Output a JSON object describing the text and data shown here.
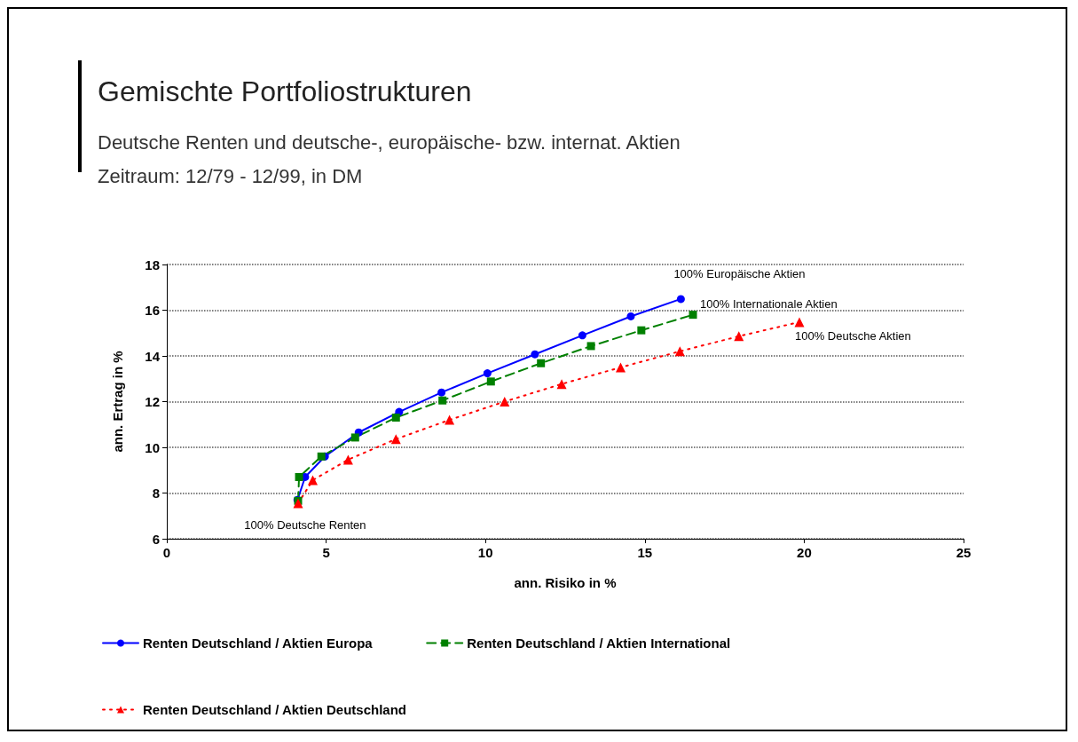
{
  "chart_data": {
    "type": "line",
    "title": "Gemischte Portfoliostrukturen",
    "subtitle": "Deutsche Renten und deutsche-, europäische- bzw. internat. Aktien\nZeitraum: 12/79 - 12/99, in DM",
    "xlabel": "ann. Risiko in %",
    "ylabel": "ann. Ertrag in %",
    "xlim": [
      0,
      25
    ],
    "xticks": [
      0,
      5,
      10,
      15,
      20,
      25
    ],
    "ylim": [
      6,
      18
    ],
    "yticks": [
      6,
      8,
      10,
      12,
      14,
      16,
      18
    ],
    "grid": "y",
    "legend": "bottom",
    "series": [
      {
        "name": "Renten Deutschland / Aktien Europa",
        "color": "#0000ff",
        "marker": "circle",
        "line_style": "solid",
        "x": [
          4.1,
          4.34,
          4.96,
          6.02,
          7.29,
          8.62,
          10.06,
          11.55,
          13.04,
          14.56,
          16.13
        ],
        "values": [
          7.7,
          8.7,
          9.6,
          10.65,
          11.55,
          12.4,
          13.24,
          14.07,
          14.9,
          15.73,
          16.49
        ]
      },
      {
        "name": "Renten Deutschland / Aktien International",
        "color": "#008000",
        "marker": "square",
        "line_style": "dashed",
        "x": [
          4.12,
          4.15,
          4.85,
          5.91,
          7.19,
          8.65,
          10.17,
          11.74,
          13.31,
          14.89,
          16.51
        ],
        "values": [
          7.66,
          8.7,
          9.6,
          10.43,
          11.3,
          12.05,
          12.88,
          13.68,
          14.43,
          15.12,
          15.8
        ]
      },
      {
        "name": "Renten Deutschland / Aktien Deutschland",
        "color": "#ff0000",
        "marker": "triangle",
        "line_style": "dotted",
        "x": [
          4.12,
          4.58,
          5.69,
          7.19,
          8.87,
          10.6,
          12.39,
          14.24,
          16.1,
          17.95,
          19.85
        ],
        "values": [
          7.55,
          8.56,
          9.46,
          10.36,
          11.2,
          12.0,
          12.77,
          13.5,
          14.2,
          14.86,
          15.48
        ]
      }
    ],
    "annotations": [
      {
        "text": "100% Europäische Aktien",
        "x": 16.13,
        "y": 16.49
      },
      {
        "text": "100% Internationale Aktien",
        "x": 16.51,
        "y": 15.8
      },
      {
        "text": "100% Deutsche Aktien",
        "x": 19.85,
        "y": 15.48
      },
      {
        "text": "100% Deutsche Renten",
        "x": 4.1,
        "y": 7.6
      }
    ]
  }
}
